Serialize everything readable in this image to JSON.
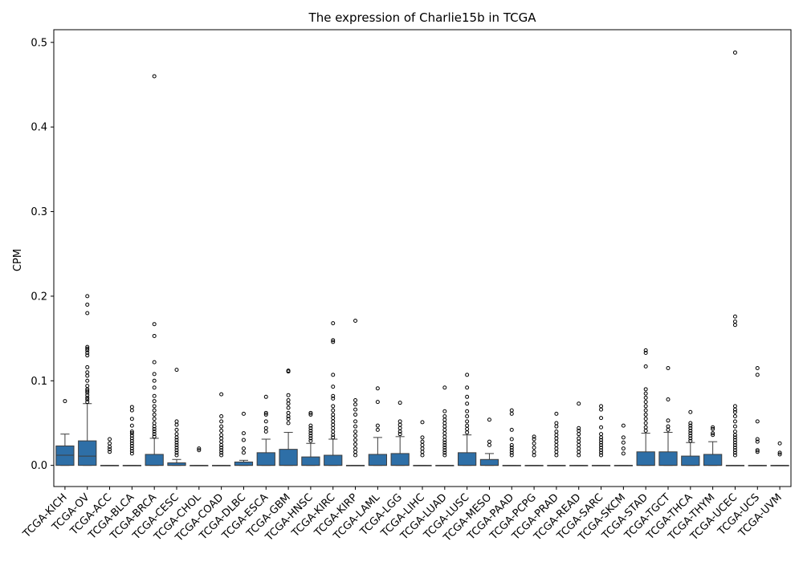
{
  "chart_data": {
    "type": "box",
    "title": "The expression of Charlie15b in TCGA",
    "xlabel": "",
    "ylabel": "CPM",
    "ylim": [
      -0.025,
      0.515
    ],
    "yticks": [
      0.0,
      0.1,
      0.2,
      0.3,
      0.4,
      0.5
    ],
    "ytick_labels": [
      "0.0",
      "0.1",
      "0.2",
      "0.3",
      "0.4",
      "0.5"
    ],
    "grid": false,
    "legend": "none",
    "box_color": "#2e6fa7",
    "categories": [
      "TCGA-KICH",
      "TCGA-OV",
      "TCGA-ACC",
      "TCGA-BLCA",
      "TCGA-BRCA",
      "TCGA-CESC",
      "TCGA-CHOL",
      "TCGA-COAD",
      "TCGA-DLBC",
      "TCGA-ESCA",
      "TCGA-GBM",
      "TCGA-HNSC",
      "TCGA-KIRC",
      "TCGA-KIRP",
      "TCGA-LAML",
      "TCGA-LGG",
      "TCGA-LIHC",
      "TCGA-LUAD",
      "TCGA-LUSC",
      "TCGA-MESO",
      "TCGA-PAAD",
      "TCGA-PCPG",
      "TCGA-PRAD",
      "TCGA-READ",
      "TCGA-SARC",
      "TCGA-SKCM",
      "TCGA-STAD",
      "TCGA-TGCT",
      "TCGA-THCA",
      "TCGA-THYM",
      "TCGA-UCEC",
      "TCGA-UCS",
      "TCGA-UVM"
    ],
    "boxes": [
      {
        "whislo": 0,
        "q1": 0,
        "med": 0.012,
        "q3": 0.023,
        "whishi": 0.037,
        "fliers": [
          0.076
        ]
      },
      {
        "whislo": 0,
        "q1": 0,
        "med": 0.011,
        "q3": 0.029,
        "whishi": 0.073,
        "fliers": [
          0.075,
          0.078,
          0.08,
          0.083,
          0.086,
          0.088,
          0.09,
          0.094,
          0.1,
          0.106,
          0.11,
          0.116,
          0.13,
          0.133,
          0.136,
          0.138,
          0.14,
          0.18,
          0.19,
          0.2
        ]
      },
      {
        "whislo": 0,
        "q1": 0,
        "med": 0,
        "q3": 0,
        "whishi": 0,
        "fliers": [
          0.016,
          0.019,
          0.022,
          0.026,
          0.031
        ]
      },
      {
        "whislo": 0,
        "q1": 0,
        "med": 0,
        "q3": 0,
        "whishi": 0,
        "fliers": [
          0.014,
          0.017,
          0.02,
          0.023,
          0.026,
          0.029,
          0.032,
          0.035,
          0.038,
          0.04,
          0.047,
          0.055,
          0.065,
          0.069
        ]
      },
      {
        "whislo": 0,
        "q1": 0,
        "med": 0,
        "q3": 0.013,
        "whishi": 0.032,
        "fliers": [
          0.034,
          0.037,
          0.04,
          0.043,
          0.046,
          0.05,
          0.055,
          0.06,
          0.065,
          0.07,
          0.076,
          0.082,
          0.092,
          0.1,
          0.108,
          0.122,
          0.153,
          0.167,
          0.46
        ]
      },
      {
        "whislo": 0,
        "q1": 0,
        "med": 0,
        "q3": 0.003,
        "whishi": 0.007,
        "fliers": [
          0.012,
          0.015,
          0.018,
          0.021,
          0.024,
          0.027,
          0.03,
          0.033,
          0.037,
          0.042,
          0.048,
          0.052,
          0.113
        ]
      },
      {
        "whislo": 0,
        "q1": 0,
        "med": 0,
        "q3": 0,
        "whishi": 0,
        "fliers": [
          0.018,
          0.02
        ]
      },
      {
        "whislo": 0,
        "q1": 0,
        "med": 0,
        "q3": 0,
        "whishi": 0,
        "fliers": [
          0.012,
          0.015,
          0.018,
          0.021,
          0.024,
          0.028,
          0.032,
          0.036,
          0.041,
          0.046,
          0.052,
          0.058,
          0.084
        ]
      },
      {
        "whislo": 0,
        "q1": 0,
        "med": 0,
        "q3": 0.004,
        "whishi": 0.006,
        "fliers": [
          0.015,
          0.02,
          0.03,
          0.038,
          0.061
        ]
      },
      {
        "whislo": 0,
        "q1": 0,
        "med": 0,
        "q3": 0.015,
        "whishi": 0.031,
        "fliers": [
          0.04,
          0.044,
          0.052,
          0.06,
          0.062,
          0.081
        ]
      },
      {
        "whislo": 0,
        "q1": 0,
        "med": 0,
        "q3": 0.019,
        "whishi": 0.039,
        "fliers": [
          0.05,
          0.055,
          0.058,
          0.062,
          0.068,
          0.073,
          0.077,
          0.083,
          0.111,
          0.112
        ]
      },
      {
        "whislo": 0,
        "q1": 0,
        "med": 0,
        "q3": 0.01,
        "whishi": 0.026,
        "fliers": [
          0.029,
          0.032,
          0.035,
          0.038,
          0.041,
          0.044,
          0.047,
          0.06,
          0.062
        ]
      },
      {
        "whislo": 0,
        "q1": 0,
        "med": 0,
        "q3": 0.012,
        "whishi": 0.031,
        "fliers": [
          0.033,
          0.036,
          0.04,
          0.044,
          0.048,
          0.052,
          0.056,
          0.06,
          0.065,
          0.07,
          0.079,
          0.082,
          0.093,
          0.107,
          0.146,
          0.148,
          0.168
        ]
      },
      {
        "whislo": 0,
        "q1": 0,
        "med": 0,
        "q3": 0,
        "whishi": 0,
        "fliers": [
          0.012,
          0.016,
          0.02,
          0.025,
          0.03,
          0.035,
          0.04,
          0.046,
          0.052,
          0.06,
          0.066,
          0.072,
          0.077,
          0.171
        ]
      },
      {
        "whislo": 0,
        "q1": 0,
        "med": 0,
        "q3": 0.013,
        "whishi": 0.033,
        "fliers": [
          0.042,
          0.047,
          0.075,
          0.091
        ]
      },
      {
        "whislo": 0,
        "q1": 0,
        "med": 0,
        "q3": 0.014,
        "whishi": 0.034,
        "fliers": [
          0.037,
          0.04,
          0.044,
          0.048,
          0.052,
          0.074
        ]
      },
      {
        "whislo": 0,
        "q1": 0,
        "med": 0,
        "q3": 0,
        "whishi": 0,
        "fliers": [
          0.012,
          0.016,
          0.02,
          0.024,
          0.028,
          0.033,
          0.051
        ]
      },
      {
        "whislo": 0,
        "q1": 0,
        "med": 0,
        "q3": 0,
        "whishi": 0,
        "fliers": [
          0.012,
          0.015,
          0.018,
          0.021,
          0.024,
          0.027,
          0.03,
          0.034,
          0.038,
          0.042,
          0.046,
          0.05,
          0.054,
          0.058,
          0.064,
          0.092
        ]
      },
      {
        "whislo": 0,
        "q1": 0,
        "med": 0,
        "q3": 0.015,
        "whishi": 0.036,
        "fliers": [
          0.039,
          0.043,
          0.047,
          0.052,
          0.058,
          0.064,
          0.073,
          0.081,
          0.092,
          0.107
        ]
      },
      {
        "whislo": 0,
        "q1": 0,
        "med": 0,
        "q3": 0.007,
        "whishi": 0.014,
        "fliers": [
          0.024,
          0.028,
          0.054
        ]
      },
      {
        "whislo": 0,
        "q1": 0,
        "med": 0,
        "q3": 0,
        "whishi": 0,
        "fliers": [
          0.012,
          0.015,
          0.018,
          0.021,
          0.024,
          0.031,
          0.042,
          0.061,
          0.065
        ]
      },
      {
        "whislo": 0,
        "q1": 0,
        "med": 0,
        "q3": 0,
        "whishi": 0,
        "fliers": [
          0.012,
          0.016,
          0.021,
          0.026,
          0.031,
          0.034
        ]
      },
      {
        "whislo": 0,
        "q1": 0,
        "med": 0,
        "q3": 0,
        "whishi": 0,
        "fliers": [
          0.012,
          0.016,
          0.02,
          0.024,
          0.028,
          0.032,
          0.036,
          0.04,
          0.046,
          0.05,
          0.061
        ]
      },
      {
        "whislo": 0,
        "q1": 0,
        "med": 0,
        "q3": 0,
        "whishi": 0,
        "fliers": [
          0.012,
          0.016,
          0.02,
          0.024,
          0.028,
          0.032,
          0.037,
          0.041,
          0.044,
          0.073
        ]
      },
      {
        "whislo": 0,
        "q1": 0,
        "med": 0,
        "q3": 0,
        "whishi": 0,
        "fliers": [
          0.012,
          0.015,
          0.018,
          0.021,
          0.024,
          0.027,
          0.03,
          0.033,
          0.037,
          0.045,
          0.056,
          0.066,
          0.07
        ]
      },
      {
        "whislo": 0,
        "q1": 0,
        "med": 0,
        "q3": 0,
        "whishi": 0,
        "fliers": [
          0.014,
          0.02,
          0.027,
          0.033,
          0.047
        ]
      },
      {
        "whislo": 0,
        "q1": 0,
        "med": 0,
        "q3": 0.016,
        "whishi": 0.038,
        "fliers": [
          0.041,
          0.045,
          0.05,
          0.055,
          0.06,
          0.065,
          0.07,
          0.075,
          0.08,
          0.085,
          0.09,
          0.117,
          0.133,
          0.136
        ]
      },
      {
        "whislo": 0,
        "q1": 0,
        "med": 0,
        "q3": 0.016,
        "whishi": 0.039,
        "fliers": [
          0.042,
          0.046,
          0.053,
          0.078,
          0.115
        ]
      },
      {
        "whislo": 0,
        "q1": 0,
        "med": 0,
        "q3": 0.011,
        "whishi": 0.027,
        "fliers": [
          0.029,
          0.032,
          0.035,
          0.038,
          0.041,
          0.044,
          0.047,
          0.05,
          0.063
        ]
      },
      {
        "whislo": 0,
        "q1": 0,
        "med": 0,
        "q3": 0.013,
        "whishi": 0.028,
        "fliers": [
          0.036,
          0.038,
          0.043,
          0.045
        ]
      },
      {
        "whislo": 0,
        "q1": 0,
        "med": 0,
        "q3": 0,
        "whishi": 0,
        "fliers": [
          0.012,
          0.015,
          0.018,
          0.021,
          0.024,
          0.027,
          0.03,
          0.033,
          0.036,
          0.04,
          0.046,
          0.052,
          0.058,
          0.063,
          0.066,
          0.07,
          0.166,
          0.17,
          0.176,
          0.488
        ]
      },
      {
        "whislo": 0,
        "q1": 0,
        "med": 0,
        "q3": 0,
        "whishi": 0,
        "fliers": [
          0.016,
          0.018,
          0.028,
          0.031,
          0.052,
          0.107,
          0.115
        ]
      },
      {
        "whislo": 0,
        "q1": 0,
        "med": 0,
        "q3": 0,
        "whishi": 0,
        "fliers": [
          0.013,
          0.015,
          0.026
        ]
      }
    ]
  }
}
